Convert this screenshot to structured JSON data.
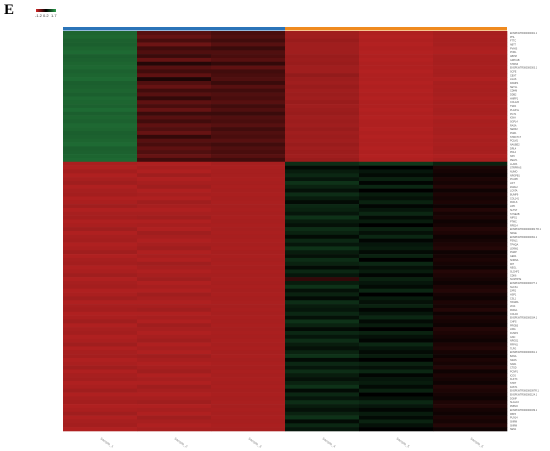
{
  "figure": {
    "panel_letter": "E",
    "color_scale": {
      "min_label": "-1.2",
      "mid_label": "0.2",
      "max_label": "1.7",
      "min_color": "#d32727",
      "mid_color": "#000000",
      "max_color": "#2ea24e"
    }
  },
  "chart_data": {
    "type": "heatmap",
    "title": "",
    "columns": [
      "Sample_1",
      "Sample_2",
      "Sample_3",
      "Sample_4",
      "Sample_5",
      "Sample_6"
    ],
    "column_groups": [
      {
        "columns": [
          0,
          1,
          2
        ],
        "color": "#2b74b8"
      },
      {
        "columns": [
          3,
          4,
          5
        ],
        "color": "#ef8a1f"
      }
    ],
    "value_range": [
      -1.2,
      1.7
    ],
    "row_labels": [
      "ENSPLWTR000000001.1",
      "PHL",
      "FTTC",
      "ABT7",
      "PVHIS",
      "PORL",
      "ABPM",
      "GRP41B",
      "STMN3",
      "ENSPLWTR000000003.1",
      "SCFE",
      "CBXT",
      "LGAS",
      "RAMP4",
      "SET1L",
      "CDHM",
      "DDB2",
      "HNRP1",
      "COL126",
      "TSPA",
      "PLGP1L",
      "PGT1",
      "IGNA",
      "SGPL4",
      "RASA",
      "SERF2",
      "PGR1",
      "STMCT1T",
      "PCLM1",
      "NAUBE2",
      "DRL4",
      "PDL4",
      "NK5",
      "PELP1",
      "LLAPA",
      "STRPRAS",
      "NUMO",
      "NRGPB1",
      "PCAPK",
      "LIFT",
      "ZGRL2",
      "LCATA",
      "BUMP9",
      "COL141",
      "PAFLS",
      "LIPK",
      "SLTST",
      "SYNE2B",
      "NIPS1",
      "PTMC",
      "RPD14",
      "ENSPLWTR000000082.TR.1",
      "SRGE",
      "ENSPLWTR000000091.1",
      "PSNL1",
      "TPHQA",
      "LENW1",
      "PGRP",
      "GEN1",
      "SNRNA",
      "MIT",
      "NEGL",
      "SLCHF2",
      "CDK6",
      "SGSTRTE",
      "ENSPLWTR000000077.1",
      "NLCS1",
      "ZAR1",
      "HSP1",
      "CSL1",
      "HASMA",
      "LTA4",
      "PARL1",
      "COLA5",
      "ENSPLWTR000000034.1",
      "CHFS",
      "PROB3",
      "LIMA",
      "DUSP4",
      "GNC",
      "NRGS1",
      "FRPN1",
      "TLPG",
      "ENSPLWTR000000061.1",
      "BANA",
      "NRAS",
      "NAR1",
      "CTSD",
      "PCNP1",
      "ICOS",
      "KLKT3",
      "STRT",
      "FAST1",
      "ENSPLWTR000000097R.1",
      "ENSPLWTR000000124.1",
      "DONP",
      "SLGL16",
      "PMP22",
      "ENSPLWTR000000039.1",
      "FBP3",
      "PUX14",
      "SNRM",
      "SNRM",
      "SEN1"
    ],
    "rows": [
      [
        1.15,
        -0.35,
        -0.25,
        -0.85,
        -0.95,
        -0.9
      ],
      [
        1.18,
        -0.45,
        -0.3,
        -0.85,
        -0.98,
        -0.92
      ],
      [
        1.12,
        -0.25,
        -0.2,
        -0.8,
        -0.95,
        -0.9
      ],
      [
        1.1,
        -0.5,
        -0.35,
        -0.85,
        -0.98,
        -0.9
      ],
      [
        1.15,
        -0.2,
        -0.15,
        -0.85,
        -0.95,
        -0.93
      ],
      [
        1.2,
        -0.3,
        -0.3,
        -0.85,
        -0.98,
        -0.95
      ],
      [
        1.1,
        -0.15,
        -0.25,
        -0.8,
        -0.95,
        -0.9
      ],
      [
        1.12,
        -0.45,
        -0.35,
        -0.82,
        -0.98,
        -0.9
      ],
      [
        1.15,
        0.0,
        -0.1,
        -0.8,
        -0.95,
        -0.9
      ],
      [
        1.18,
        -0.35,
        -0.4,
        -0.85,
        -0.95,
        -0.92
      ],
      [
        1.12,
        -0.2,
        -0.2,
        -0.85,
        -0.98,
        -0.9
      ],
      [
        1.15,
        -0.4,
        -0.25,
        -0.75,
        -0.95,
        -0.9
      ],
      [
        1.2,
        0.05,
        -0.3,
        -0.82,
        -0.95,
        -0.95
      ],
      [
        1.1,
        -0.3,
        -0.15,
        -0.85,
        -0.98,
        -0.9
      ],
      [
        1.12,
        -0.45,
        -0.35,
        -0.8,
        -0.95,
        -0.92
      ],
      [
        1.15,
        -0.2,
        -0.2,
        -0.85,
        -0.98,
        -0.9
      ],
      [
        1.1,
        -0.35,
        -0.3,
        -0.82,
        -0.95,
        -0.9
      ],
      [
        1.18,
        -0.1,
        -0.25,
        -0.85,
        -0.98,
        -0.93
      ],
      [
        1.15,
        -0.4,
        -0.35,
        -0.8,
        -0.95,
        -0.9
      ],
      [
        1.12,
        -0.25,
        -0.2,
        -0.85,
        -0.95,
        -0.92
      ],
      [
        1.2,
        -0.45,
        -0.3,
        -0.82,
        -0.98,
        -0.9
      ],
      [
        1.1,
        -0.15,
        -0.15,
        -0.8,
        -0.95,
        -0.9
      ],
      [
        1.15,
        -0.35,
        -0.3,
        -0.85,
        -0.98,
        -0.95
      ],
      [
        1.12,
        -0.2,
        -0.25,
        -0.82,
        -0.95,
        -0.9
      ],
      [
        1.18,
        -0.4,
        -0.35,
        -0.85,
        -0.95,
        -0.92
      ],
      [
        1.15,
        -0.3,
        -0.2,
        -0.8,
        -0.98,
        -0.9
      ],
      [
        1.1,
        -0.45,
        -0.3,
        -0.85,
        -0.95,
        -0.9
      ],
      [
        1.12,
        -0.1,
        -0.25,
        -0.82,
        -0.98,
        -0.93
      ],
      [
        1.15,
        -0.35,
        -0.35,
        -0.85,
        -0.95,
        -0.9
      ],
      [
        1.2,
        -0.25,
        -0.2,
        -0.8,
        -0.95,
        -0.92
      ],
      [
        1.1,
        -0.4,
        -0.3,
        -0.85,
        -0.98,
        -0.9
      ],
      [
        1.12,
        -0.3,
        -0.25,
        -0.82,
        -0.95,
        -0.9
      ],
      [
        1.15,
        -0.45,
        -0.35,
        -0.85,
        -0.98,
        -0.95
      ],
      [
        1.18,
        -0.2,
        -0.2,
        -0.8,
        -0.95,
        -0.9
      ],
      [
        -0.92,
        -0.95,
        -0.9,
        0.65,
        0.75,
        0.55
      ],
      [
        -0.95,
        -0.9,
        -0.92,
        0.35,
        0.25,
        0.05
      ],
      [
        -0.88,
        -0.95,
        -0.9,
        0.5,
        0.45,
        0.1
      ],
      [
        -0.95,
        -0.85,
        -0.9,
        0.6,
        0.35,
        0.15
      ],
      [
        -0.9,
        -0.95,
        -0.92,
        0.45,
        0.55,
        0.05
      ],
      [
        -0.85,
        -0.9,
        -0.9,
        0.7,
        0.3,
        0.1
      ],
      [
        -0.95,
        -0.85,
        -0.92,
        0.55,
        0.6,
        0.0
      ],
      [
        -0.9,
        -0.95,
        -0.9,
        0.4,
        0.25,
        0.15
      ],
      [
        -0.88,
        -0.9,
        -0.92,
        0.65,
        0.5,
        0.05
      ],
      [
        -0.95,
        -0.95,
        -0.9,
        0.5,
        0.4,
        0.1
      ],
      [
        -0.92,
        -0.85,
        -0.92,
        0.35,
        0.55,
        0.05
      ],
      [
        -0.85,
        -0.9,
        -0.9,
        0.6,
        0.3,
        0.15
      ],
      [
        -0.95,
        -0.95,
        -0.92,
        0.55,
        0.45,
        0.0
      ],
      [
        -0.9,
        -0.9,
        -0.9,
        0.45,
        0.6,
        0.1
      ],
      [
        -0.88,
        -0.85,
        -0.92,
        0.7,
        0.35,
        0.05
      ],
      [
        -0.95,
        -0.95,
        -0.9,
        0.5,
        0.5,
        0.15
      ],
      [
        -0.92,
        -0.9,
        -0.92,
        0.4,
        0.25,
        0.1
      ],
      [
        -0.85,
        -0.95,
        -0.9,
        0.65,
        0.55,
        0.0
      ],
      [
        -0.95,
        -0.85,
        -0.92,
        0.55,
        0.4,
        0.05
      ],
      [
        -0.9,
        -0.9,
        -0.9,
        0.35,
        0.6,
        0.15
      ],
      [
        -0.88,
        -0.95,
        -0.92,
        0.6,
        0.3,
        0.1
      ],
      [
        -0.95,
        -0.9,
        -0.9,
        0.45,
        0.45,
        0.05
      ],
      [
        -0.92,
        -0.85,
        -0.92,
        0.7,
        0.5,
        0.0
      ],
      [
        -0.85,
        -0.95,
        -0.9,
        0.5,
        0.35,
        0.15
      ],
      [
        -0.95,
        -0.9,
        -0.92,
        0.4,
        0.55,
        0.1
      ],
      [
        -0.9,
        -0.95,
        -0.9,
        0.65,
        0.25,
        0.05
      ],
      [
        -0.88,
        -0.85,
        -0.92,
        0.55,
        0.6,
        0.1
      ],
      [
        -0.95,
        -0.9,
        -0.9,
        0.35,
        0.4,
        0.15
      ],
      [
        -0.92,
        -0.95,
        -0.92,
        0.6,
        0.5,
        0.0
      ],
      [
        -0.85,
        -0.9,
        -0.9,
        0.45,
        0.3,
        0.05
      ],
      [
        -0.95,
        -0.85,
        -0.92,
        -0.1,
        0.55,
        0.1
      ],
      [
        -0.9,
        -0.95,
        -0.9,
        0.5,
        0.45,
        0.15
      ],
      [
        -0.88,
        -0.9,
        -0.92,
        0.7,
        0.35,
        0.05
      ],
      [
        -0.95,
        -0.95,
        -0.9,
        0.4,
        0.6,
        0.0
      ],
      [
        -0.92,
        -0.85,
        -0.92,
        0.55,
        0.25,
        0.1
      ],
      [
        -0.85,
        -0.9,
        -0.9,
        0.35,
        0.5,
        0.15
      ],
      [
        -0.95,
        -0.95,
        -0.92,
        0.65,
        0.4,
        0.05
      ],
      [
        -0.9,
        -0.9,
        -0.9,
        0.5,
        0.55,
        0.1
      ],
      [
        -0.88,
        -0.85,
        -0.92,
        0.45,
        0.3,
        0.0
      ],
      [
        -0.95,
        -0.95,
        -0.9,
        0.6,
        0.45,
        0.15
      ],
      [
        -0.92,
        -0.9,
        -0.92,
        0.4,
        0.6,
        0.05
      ],
      [
        -0.85,
        -0.95,
        -0.9,
        0.7,
        0.35,
        0.1
      ],
      [
        -0.95,
        -0.85,
        -0.92,
        0.55,
        0.5,
        0.15
      ],
      [
        -0.9,
        -0.9,
        -0.9,
        0.35,
        0.25,
        0.0
      ],
      [
        -0.88,
        -0.95,
        -0.92,
        0.6,
        0.55,
        0.05
      ],
      [
        -0.95,
        -0.9,
        -0.9,
        0.45,
        0.4,
        0.1
      ],
      [
        -0.92,
        -0.85,
        -0.92,
        0.65,
        0.3,
        0.15
      ],
      [
        -0.85,
        -0.95,
        -0.9,
        0.5,
        0.6,
        0.05
      ],
      [
        -0.95,
        -0.9,
        -0.92,
        0.4,
        0.45,
        0.0
      ],
      [
        -0.9,
        -0.95,
        -0.9,
        0.55,
        0.35,
        0.1
      ],
      [
        -0.88,
        -0.85,
        -0.92,
        0.7,
        0.5,
        0.15
      ],
      [
        -0.95,
        -0.9,
        -0.9,
        0.35,
        0.25,
        0.05
      ],
      [
        -0.92,
        -0.95,
        -0.92,
        0.6,
        0.55,
        0.1
      ],
      [
        -0.85,
        -0.9,
        -0.9,
        0.45,
        0.4,
        0.0
      ],
      [
        -0.95,
        -0.85,
        -0.92,
        0.65,
        0.6,
        0.15
      ],
      [
        -0.9,
        -0.95,
        -0.9,
        0.5,
        0.3,
        0.05
      ],
      [
        -0.88,
        -0.9,
        -0.92,
        0.4,
        0.45,
        0.1
      ],
      [
        -0.95,
        -0.95,
        -0.9,
        0.55,
        0.5,
        0.15
      ],
      [
        -0.92,
        -0.85,
        -0.92,
        0.7,
        0.35,
        0.0
      ],
      [
        -0.85,
        -0.9,
        -0.9,
        0.35,
        0.55,
        0.05
      ],
      [
        -0.95,
        -0.95,
        -0.92,
        0.6,
        0.25,
        0.1
      ],
      [
        -0.9,
        -0.9,
        -0.9,
        0.45,
        0.4,
        0.15
      ],
      [
        -0.88,
        -0.85,
        -0.92,
        0.65,
        0.6,
        0.05
      ],
      [
        -0.95,
        -0.95,
        -0.9,
        0.5,
        0.45,
        0.0
      ],
      [
        -0.92,
        -0.9,
        -0.92,
        0.4,
        0.3,
        0.1
      ],
      [
        -0.85,
        -0.95,
        -0.9,
        0.55,
        0.5,
        0.15
      ],
      [
        -0.95,
        -0.85,
        -0.92,
        0.7,
        0.35,
        0.05
      ],
      [
        -0.9,
        -0.9,
        -0.9,
        0.35,
        0.55,
        0.1
      ],
      [
        -0.88,
        -0.95,
        -0.92,
        0.6,
        0.4,
        0.0
      ],
      [
        -0.95,
        -0.9,
        -0.9,
        0.45,
        0.25,
        0.15
      ]
    ]
  }
}
